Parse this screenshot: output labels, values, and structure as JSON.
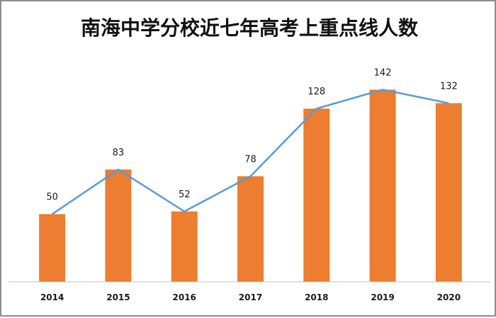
{
  "chart_data": {
    "type": "bar",
    "title": "南海中学分校近七年高考上重点线人数",
    "categories": [
      "2014",
      "2015",
      "2016",
      "2017",
      "2018",
      "2019",
      "2020"
    ],
    "values": [
      50,
      83,
      52,
      78,
      128,
      142,
      132
    ],
    "overlay": "line",
    "ylim": [
      0,
      160
    ],
    "grid": false,
    "legend": "none",
    "colors": {
      "bar": "#ED7D31",
      "line": "#5B9BD5",
      "axis": "#bfbfbf"
    }
  }
}
